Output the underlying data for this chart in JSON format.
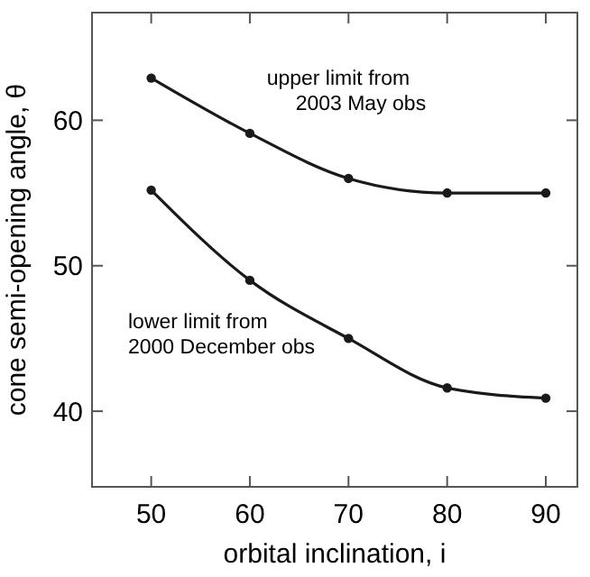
{
  "chart_data": {
    "type": "line",
    "xlabel": "orbital inclination, i",
    "ylabel": "cone semi-opening angle, θ",
    "x": [
      50,
      60,
      70,
      80,
      90
    ],
    "series": [
      {
        "color": "#1a1a1a",
        "values": [
          62.9,
          59.1,
          56.0,
          55.0,
          55.0
        ]
      },
      {
        "color": "#1a1a1a",
        "values": [
          55.2,
          49.0,
          45.0,
          41.6,
          40.9
        ]
      }
    ],
    "annotations": [
      "upper limit from\n2003 May obs",
      "lower limit from\n2000 December obs"
    ],
    "xlim": [
      44,
      93.2
    ],
    "xticks": [
      50,
      60,
      70,
      80,
      90
    ],
    "ylim": [
      34.8,
      67.4
    ],
    "yticks": [
      40,
      50,
      60
    ],
    "marker": "circle",
    "line_style": "solid",
    "grid": false
  }
}
